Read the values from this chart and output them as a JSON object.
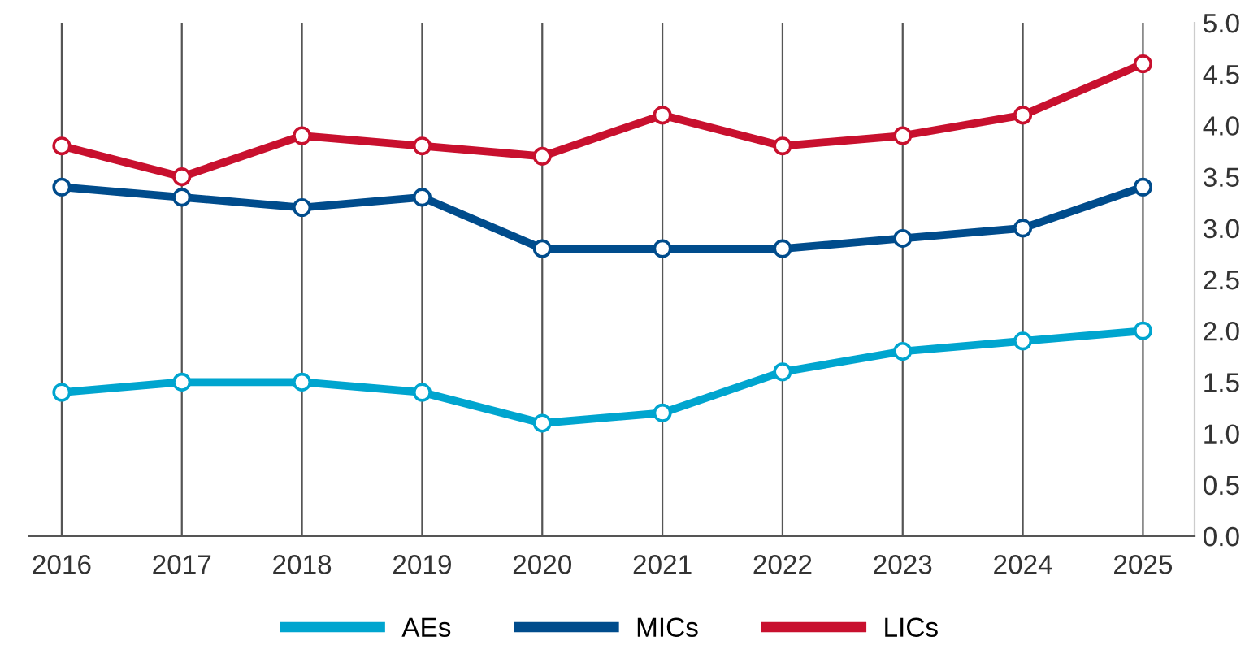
{
  "chart_data": {
    "type": "line",
    "categories": [
      "2016",
      "2017",
      "2018",
      "2019",
      "2020",
      "2021",
      "2022",
      "2023",
      "2024",
      "2025"
    ],
    "series": [
      {
        "name": "AEs",
        "color": "#00a5cf",
        "values": [
          1.4,
          1.5,
          1.5,
          1.4,
          1.1,
          1.2,
          1.6,
          1.8,
          1.9,
          2.0
        ]
      },
      {
        "name": "MICs",
        "color": "#004c8c",
        "values": [
          3.4,
          3.3,
          3.2,
          3.3,
          2.8,
          2.8,
          2.8,
          2.9,
          3.0,
          3.4
        ]
      },
      {
        "name": "LICs",
        "color": "#c8102e",
        "values": [
          3.8,
          3.5,
          3.9,
          3.8,
          3.7,
          4.1,
          3.8,
          3.9,
          4.1,
          4.6
        ]
      }
    ],
    "ylim": [
      0,
      5
    ],
    "yticks": [
      {
        "value": 0,
        "label": "0.0"
      },
      {
        "value": 0.5,
        "label": "0.5"
      },
      {
        "value": 1,
        "label": "1.0"
      },
      {
        "value": 1.5,
        "label": "1.5"
      },
      {
        "value": 2,
        "label": "2.0"
      },
      {
        "value": 2.5,
        "label": "2.5"
      },
      {
        "value": 3,
        "label": "3.0"
      },
      {
        "value": 3.5,
        "label": "3.5"
      },
      {
        "value": 4,
        "label": "4.0"
      },
      {
        "value": 4.5,
        "label": "4.5"
      },
      {
        "value": 5,
        "label": "5.0"
      }
    ],
    "grid": "x",
    "legend": "bottom",
    "marker": "circle",
    "line_style": "solid"
  }
}
